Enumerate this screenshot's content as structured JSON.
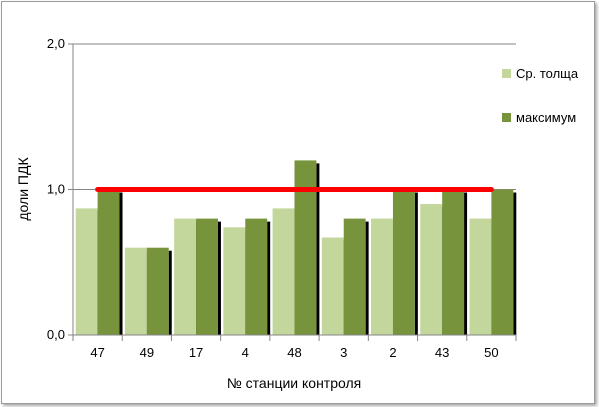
{
  "chart_data": {
    "type": "bar",
    "categories": [
      "47",
      "49",
      "17",
      "4",
      "48",
      "3",
      "2",
      "43",
      "50"
    ],
    "series": [
      {
        "name": "Ср. толща",
        "values": [
          0.87,
          0.6,
          0.8,
          0.74,
          0.87,
          0.67,
          0.8,
          0.9,
          0.8
        ],
        "color": "#c3d69b"
      },
      {
        "name": "максимум",
        "values": [
          1.0,
          0.6,
          0.8,
          0.8,
          1.2,
          0.8,
          1.0,
          1.0,
          1.0
        ],
        "color": "#77933c"
      }
    ],
    "reference_line": {
      "value": 1.0,
      "color": "#ff0000"
    },
    "xlabel": "№ станции контроля",
    "ylabel": "доли ПДК",
    "ylim": [
      0,
      2
    ],
    "y_ticks": [
      "0,0",
      "1,0",
      "2,0"
    ],
    "grid": true,
    "legend": "right"
  }
}
